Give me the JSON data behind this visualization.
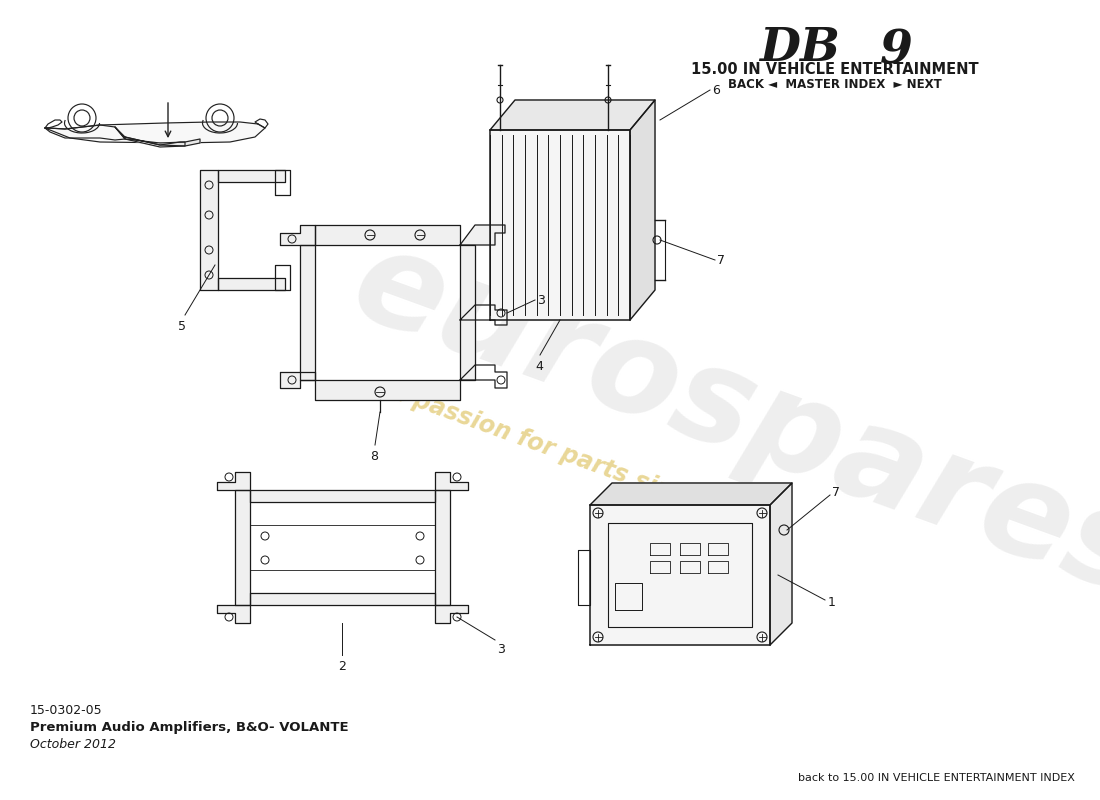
{
  "title_main": "DB 9",
  "title_sub": "15.00 IN VEHICLE ENTERTAINMENT",
  "nav_text": "BACK ◄  MASTER INDEX  ► NEXT",
  "part_number": "15-0302-05",
  "part_name": "Premium Audio Amplifiers, B&O- VOLANTE",
  "part_date": "October 2012",
  "bottom_text": "back to 15.00 IN VEHICLE ENTERTAINMENT INDEX",
  "bg_color": "#ffffff",
  "line_color": "#1a1a1a",
  "wm_text_color": "#d4b030",
  "wm_logo_color": "#d0d0d0",
  "wm_text_alpha": 0.5,
  "wm_logo_alpha": 0.35
}
